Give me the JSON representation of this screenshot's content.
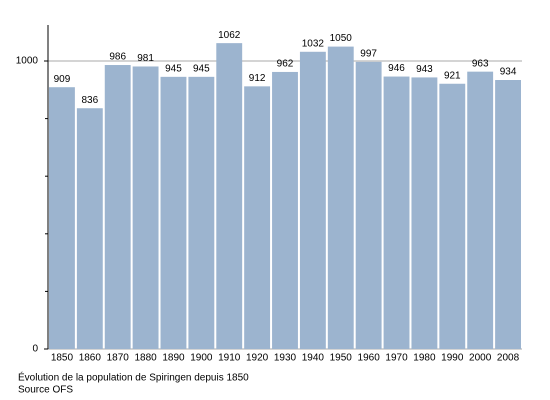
{
  "chart_data": {
    "type": "bar",
    "categories": [
      "1850",
      "1860",
      "1870",
      "1880",
      "1890",
      "1900",
      "1910",
      "1920",
      "1930",
      "1940",
      "1950",
      "1960",
      "1970",
      "1980",
      "1990",
      "2000",
      "2008"
    ],
    "values": [
      909,
      836,
      986,
      981,
      945,
      945,
      1062,
      912,
      962,
      1032,
      1050,
      997,
      946,
      943,
      921,
      963,
      934
    ],
    "color": "#9cb4cf",
    "ylim": [
      0,
      1125
    ],
    "yticks": [
      0,
      1000
    ],
    "minor_yticks": [
      200,
      400,
      600,
      800
    ],
    "grid": true,
    "caption": "Évolution de la population de Spiringen depuis 1850",
    "source": "Source OFS"
  }
}
